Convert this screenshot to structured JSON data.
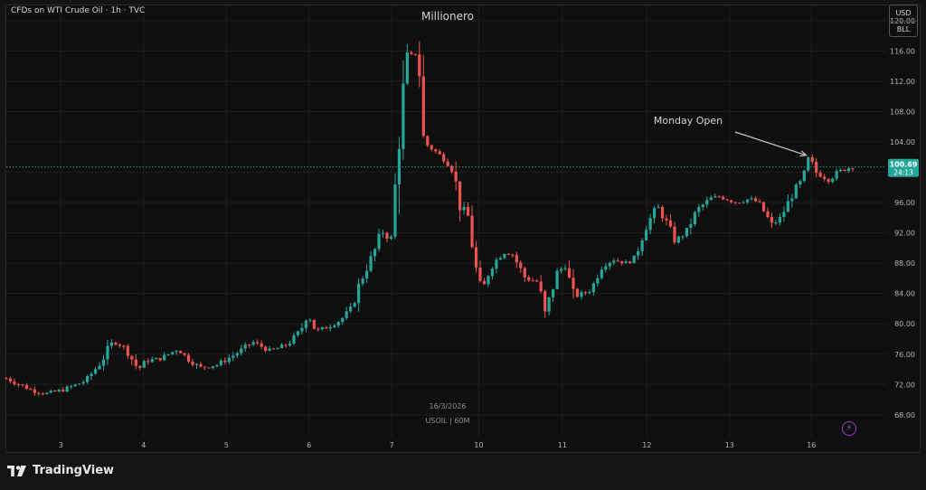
{
  "header": {
    "symbol_line": "CFDs on WTI Crude Oil · 1h · TVC",
    "title": "Millionero",
    "currency": "USD",
    "unit": "BLL"
  },
  "watermark": {
    "date": "16/3/2026",
    "ticker": "USOIL | 60M"
  },
  "footer": {
    "brand": "TradingView"
  },
  "chart_data": {
    "type": "candlestick",
    "ylim": [
      65,
      122
    ],
    "y_ticks": [
      "120.00",
      "116.00",
      "112.00",
      "108.00",
      "104.00",
      "100.00",
      "96.00",
      "92.00",
      "88.00",
      "84.00",
      "80.00",
      "76.00",
      "72.00",
      "68.00"
    ],
    "x_ticks": [
      {
        "label": "3",
        "pos": 0.062
      },
      {
        "label": "4",
        "pos": 0.156
      },
      {
        "label": "5",
        "pos": 0.25
      },
      {
        "label": "6",
        "pos": 0.344
      },
      {
        "label": "7",
        "pos": 0.438
      },
      {
        "label": "10",
        "pos": 0.537
      },
      {
        "label": "11",
        "pos": 0.632
      },
      {
        "label": "12",
        "pos": 0.728
      },
      {
        "label": "13",
        "pos": 0.822
      },
      {
        "label": "16",
        "pos": 0.915
      }
    ],
    "last_price": {
      "value": 100.69,
      "label": "100.69",
      "countdown": "24:13"
    },
    "annotation": {
      "text": "Monday Open",
      "target_price": 102.0,
      "target_pos": 0.913
    },
    "colors": {
      "up": "#26a69a",
      "down": "#ef5350",
      "grid": "#1e1e1e",
      "price_line": "#26a69a"
    },
    "path": [
      [
        0.0,
        72.8
      ],
      [
        0.03,
        71.2
      ],
      [
        0.045,
        70.8
      ],
      [
        0.065,
        71.3
      ],
      [
        0.09,
        72.5
      ],
      [
        0.108,
        75.0
      ],
      [
        0.118,
        77.2
      ],
      [
        0.125,
        77.6
      ],
      [
        0.135,
        76.8
      ],
      [
        0.15,
        74.0
      ],
      [
        0.16,
        75.2
      ],
      [
        0.175,
        75.4
      ],
      [
        0.195,
        76.7
      ],
      [
        0.205,
        75.5
      ],
      [
        0.22,
        74.2
      ],
      [
        0.24,
        74.6
      ],
      [
        0.26,
        76.0
      ],
      [
        0.28,
        77.6
      ],
      [
        0.3,
        76.4
      ],
      [
        0.32,
        77.3
      ],
      [
        0.335,
        79.2
      ],
      [
        0.342,
        81.5
      ],
      [
        0.352,
        79.0
      ],
      [
        0.365,
        79.6
      ],
      [
        0.38,
        80.5
      ],
      [
        0.392,
        82.0
      ],
      [
        0.402,
        85.5
      ],
      [
        0.418,
        89.5
      ],
      [
        0.427,
        92.3
      ],
      [
        0.437,
        91.0
      ],
      [
        0.442,
        98.0
      ],
      [
        0.448,
        107.5
      ],
      [
        0.455,
        114.5
      ],
      [
        0.462,
        115.5
      ],
      [
        0.468,
        116.0
      ],
      [
        0.474,
        104.0
      ],
      [
        0.485,
        103.0
      ],
      [
        0.5,
        101.5
      ],
      [
        0.508,
        100.2
      ],
      [
        0.516,
        95.5
      ],
      [
        0.526,
        94.0
      ],
      [
        0.532,
        88.0
      ],
      [
        0.54,
        84.0
      ],
      [
        0.55,
        87.5
      ],
      [
        0.565,
        89.5
      ],
      [
        0.575,
        89.2
      ],
      [
        0.59,
        86.0
      ],
      [
        0.605,
        85.5
      ],
      [
        0.612,
        81.0
      ],
      [
        0.625,
        86.5
      ],
      [
        0.635,
        87.8
      ],
      [
        0.645,
        83.5
      ],
      [
        0.665,
        84.5
      ],
      [
        0.675,
        87.5
      ],
      [
        0.69,
        88.5
      ],
      [
        0.705,
        88.0
      ],
      [
        0.715,
        88.8
      ],
      [
        0.725,
        92.5
      ],
      [
        0.74,
        95.5
      ],
      [
        0.752,
        93.0
      ],
      [
        0.76,
        91.0
      ],
      [
        0.772,
        92.0
      ],
      [
        0.785,
        95.0
      ],
      [
        0.8,
        96.5
      ],
      [
        0.81,
        96.8
      ],
      [
        0.83,
        96.0
      ],
      [
        0.845,
        96.5
      ],
      [
        0.855,
        96.0
      ],
      [
        0.87,
        93.0
      ],
      [
        0.88,
        94.0
      ],
      [
        0.895,
        97.5
      ],
      [
        0.905,
        99.0
      ],
      [
        0.91,
        101.0
      ],
      [
        0.913,
        102.0
      ],
      [
        0.92,
        100.0
      ],
      [
        0.935,
        99.0
      ],
      [
        0.945,
        100.0
      ],
      [
        0.955,
        100.5
      ],
      [
        0.962,
        100.69
      ]
    ]
  }
}
